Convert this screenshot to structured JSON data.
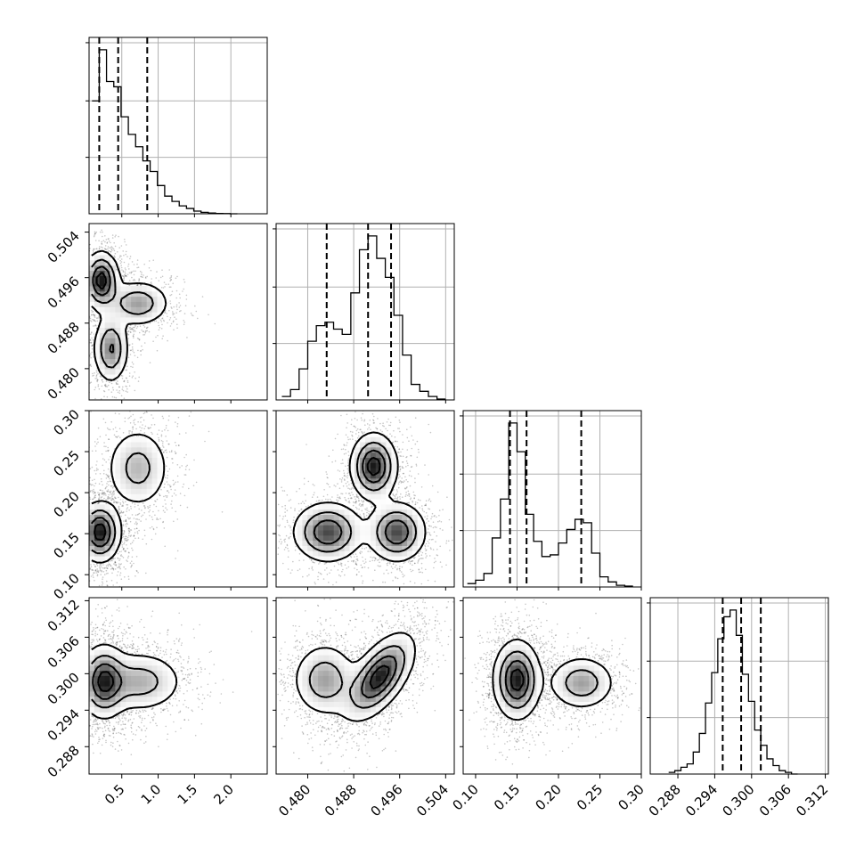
{
  "chart_data": {
    "type": "corner",
    "parameters": [
      {
        "index": 0,
        "xlim": [
          0.05,
          2.5
        ],
        "ticks": [
          0.5,
          1.0,
          1.5,
          2.0
        ],
        "tick_labels": [
          "0.5",
          "1.0",
          "1.5",
          "2.0"
        ],
        "quantiles": [
          0.19,
          0.45,
          0.85
        ]
      },
      {
        "index": 1,
        "xlim": [
          0.4745,
          0.5055
        ],
        "ticks": [
          0.48,
          0.488,
          0.496,
          0.504
        ],
        "tick_labels": [
          "0.480",
          "0.488",
          "0.496",
          "0.504"
        ],
        "quantiles": [
          0.4833,
          0.4905,
          0.4945
        ]
      },
      {
        "index": 2,
        "xlim": [
          0.085,
          0.3
        ],
        "ticks": [
          0.1,
          0.15,
          0.2,
          0.25,
          0.3
        ],
        "tick_labels": [
          "0.10",
          "0.15",
          "0.20",
          "0.25",
          "0.30"
        ],
        "quantiles": [
          0.1415,
          0.1615,
          0.2275
        ]
      },
      {
        "index": 3,
        "xlim": [
          0.2835,
          0.3125
        ],
        "ticks": [
          0.288,
          0.294,
          0.3,
          0.306,
          0.312
        ],
        "tick_labels": [
          "0.288",
          "0.294",
          "0.300",
          "0.306",
          "0.312"
        ],
        "quantiles": [
          0.2953,
          0.2983,
          0.3015
        ]
      }
    ],
    "histograms": [
      {
        "param": 0,
        "bins": [
          0.09,
          0.19,
          0.29,
          0.39,
          0.49,
          0.59,
          0.69,
          0.79,
          0.89,
          0.99,
          1.09,
          1.19,
          1.29,
          1.39,
          1.49,
          1.59,
          1.69,
          1.79,
          1.89,
          1.99,
          2.09
        ],
        "counts": [
          0.64,
          0.93,
          0.75,
          0.72,
          0.55,
          0.45,
          0.38,
          0.3,
          0.24,
          0.16,
          0.1,
          0.07,
          0.045,
          0.03,
          0.015,
          0.008,
          0.004,
          0.002,
          0.001,
          0.0
        ]
      },
      {
        "param": 1,
        "bins": [
          0.4755,
          0.477,
          0.4785,
          0.48,
          0.4815,
          0.483,
          0.4845,
          0.486,
          0.4875,
          0.489,
          0.4905,
          0.492,
          0.4935,
          0.495,
          0.4965,
          0.498,
          0.4995,
          0.501,
          0.5025,
          0.504
        ],
        "counts": [
          0.02,
          0.06,
          0.18,
          0.34,
          0.43,
          0.45,
          0.41,
          0.38,
          0.62,
          0.87,
          0.95,
          0.82,
          0.71,
          0.49,
          0.26,
          0.09,
          0.05,
          0.02,
          0.005
        ]
      },
      {
        "param": 2,
        "bins": [
          0.09,
          0.1,
          0.11,
          0.12,
          0.13,
          0.14,
          0.15,
          0.16,
          0.17,
          0.18,
          0.19,
          0.2,
          0.21,
          0.22,
          0.23,
          0.24,
          0.25,
          0.26,
          0.27,
          0.28,
          0.29
        ],
        "counts": [
          0.02,
          0.04,
          0.08,
          0.29,
          0.52,
          0.97,
          0.8,
          0.43,
          0.27,
          0.18,
          0.19,
          0.26,
          0.34,
          0.4,
          0.38,
          0.2,
          0.06,
          0.03,
          0.01,
          0.005
        ]
      },
      {
        "param": 3,
        "bins": [
          0.2865,
          0.2875,
          0.2885,
          0.2895,
          0.2905,
          0.2915,
          0.2925,
          0.2935,
          0.2945,
          0.2955,
          0.2965,
          0.2975,
          0.2985,
          0.2995,
          0.3005,
          0.3015,
          0.3025,
          0.3035,
          0.3045,
          0.3055,
          0.3065,
          0.3075
        ],
        "counts": [
          0.01,
          0.02,
          0.04,
          0.06,
          0.13,
          0.24,
          0.42,
          0.6,
          0.8,
          0.93,
          0.97,
          0.82,
          0.59,
          0.43,
          0.26,
          0.17,
          0.09,
          0.05,
          0.02,
          0.01,
          0.0
        ]
      }
    ],
    "joint": [
      {
        "x_param": 0,
        "y_param": 1,
        "modes": [
          [
            0.22,
            0.4955,
            0.12,
            0.0025,
            0.0,
            1.0
          ],
          [
            0.72,
            0.4915,
            0.22,
            0.002,
            0.0,
            0.55
          ],
          [
            0.35,
            0.4835,
            0.12,
            0.003,
            0.0,
            0.65
          ]
        ]
      },
      {
        "x_param": 0,
        "y_param": 2,
        "modes": [
          [
            0.2,
            0.152,
            0.14,
            0.018,
            0.0,
            1.0
          ],
          [
            0.72,
            0.23,
            0.22,
            0.025,
            0.0,
            0.45
          ]
        ]
      },
      {
        "x_param": 0,
        "y_param": 3,
        "modes": [
          [
            0.25,
            0.2987,
            0.16,
            0.003,
            0.0,
            1.0
          ],
          [
            0.75,
            0.2987,
            0.3,
            0.0025,
            0.0,
            0.55
          ]
        ]
      },
      {
        "x_param": 1,
        "y_param": 2,
        "modes": [
          [
            0.4835,
            0.152,
            0.003,
            0.018,
            0.0,
            0.85
          ],
          [
            0.4955,
            0.152,
            0.0025,
            0.018,
            0.0,
            0.85
          ],
          [
            0.4915,
            0.232,
            0.002,
            0.02,
            0.0,
            1.0
          ]
        ]
      },
      {
        "x_param": 1,
        "y_param": 3,
        "modes": [
          [
            0.483,
            0.299,
            0.0028,
            0.003,
            0.0,
            0.55
          ],
          [
            0.4925,
            0.2995,
            0.003,
            0.0035,
            0.6,
            1.0
          ]
        ]
      },
      {
        "x_param": 2,
        "y_param": 3,
        "modes": [
          [
            0.15,
            0.299,
            0.014,
            0.0032,
            0.0,
            1.0
          ],
          [
            0.228,
            0.2985,
            0.02,
            0.0022,
            0.0,
            0.55
          ]
        ]
      }
    ]
  }
}
